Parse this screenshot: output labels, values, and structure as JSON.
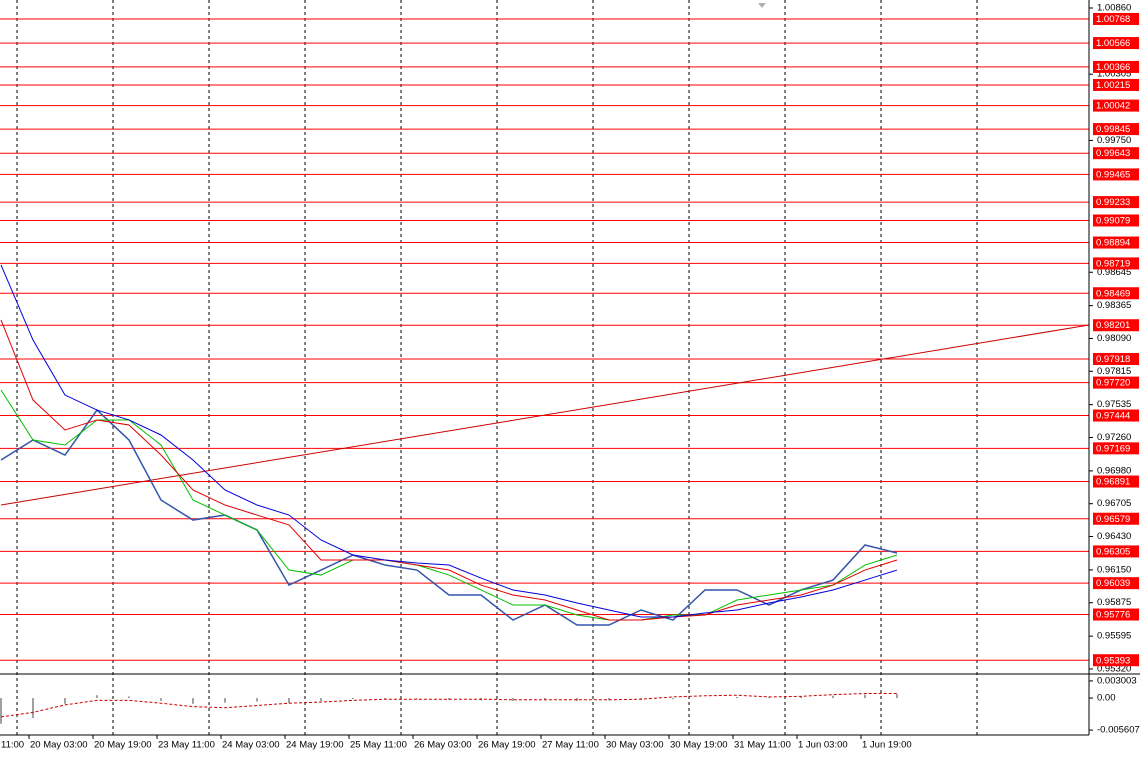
{
  "chart_data": {
    "type": "line",
    "x": [
      0,
      8,
      16,
      24,
      32,
      40,
      48,
      56,
      64,
      72,
      80,
      88,
      96,
      104,
      112,
      120,
      128,
      136,
      144,
      152,
      160,
      168,
      176,
      184,
      192,
      200,
      208,
      216,
      224
    ],
    "xlim": [
      -0.25,
      271.75
    ],
    "xticks": [
      {
        "value": -9,
        "label": "11:00"
      },
      {
        "value": 7,
        "label": "20 May 03:00"
      },
      {
        "value": 23,
        "label": "20 May 19:00"
      },
      {
        "value": 39,
        "label": "23 May 11:00"
      },
      {
        "value": 55,
        "label": "24 May 03:00"
      },
      {
        "value": 71,
        "label": "24 May 19:00"
      },
      {
        "value": 87,
        "label": "25 May 11:00"
      },
      {
        "value": 103,
        "label": "26 May 03:00"
      },
      {
        "value": 119,
        "label": "26 May 19:00"
      },
      {
        "value": 135,
        "label": "27 May 11:00"
      },
      {
        "value": 151,
        "label": "30 May 03:00"
      },
      {
        "value": 167,
        "label": "30 May 19:00"
      },
      {
        "value": 183,
        "label": "31 May 11:00"
      },
      {
        "value": 199,
        "label": "1 Jun 03:00"
      },
      {
        "value": 215,
        "label": "1 Jun 19:00"
      }
    ],
    "xgrid": [
      4,
      28,
      52,
      76,
      100,
      124,
      148,
      172,
      196,
      220,
      244
    ],
    "ylim": [
      0.95286,
      1.00927
    ],
    "yticks": [
      {
        "value": 1.0086,
        "label": "1.00860"
      },
      1.00305,
      {
        "value": 0.9975,
        "label": "0.99750"
      },
      0.98645,
      0.98365,
      {
        "value": 0.9809,
        "label": "0.98090"
      },
      0.97815,
      0.97535,
      {
        "value": 0.9726,
        "label": "0.97260"
      },
      {
        "value": 0.9698,
        "label": "0.96980"
      },
      0.96705,
      {
        "value": 0.9643,
        "label": "0.96430"
      },
      {
        "value": 0.9615,
        "label": "0.96150"
      },
      0.95875,
      0.95595,
      {
        "value": 0.9532,
        "label": "0.95320"
      }
    ],
    "levels": [
      1.00768,
      1.00566,
      1.00366,
      1.00215,
      1.00042,
      0.99845,
      0.99643,
      0.99465,
      0.99233,
      0.99079,
      0.98894,
      0.98719,
      0.98469,
      0.98201,
      0.97918,
      {
        "value": 0.9772,
        "label": "0.97720"
      },
      0.97444,
      0.97169,
      0.96891,
      0.96579,
      0.96305,
      0.96039,
      0.95776,
      0.95393
    ],
    "level_color": "#ff0000",
    "series": [
      {
        "color": "#3355aa",
        "values": [
          0.97071,
          0.97239,
          0.97113,
          0.9749,
          0.97239,
          0.96736,
          0.96568,
          0.9661,
          0.96485,
          0.96023,
          0.96149,
          0.96275,
          0.96191,
          0.96149,
          0.9594,
          0.9594,
          0.9573,
          0.95856,
          0.95688,
          0.95688,
          0.95814,
          0.9573,
          0.95982,
          0.95982,
          0.95856,
          0.95982,
          0.96065,
          0.96359,
          0.96292
        ]
      },
      {
        "color": "#00c000",
        "values": [
          0.97658,
          0.97239,
          0.97197,
          0.97407,
          0.97407,
          0.97197,
          0.96736,
          0.9661,
          0.96485,
          0.96149,
          0.96107,
          0.96233,
          0.96233,
          0.96191,
          0.96107,
          0.95982,
          0.95856,
          0.95856,
          0.95772,
          0.9573,
          0.9573,
          0.95772,
          0.95772,
          0.95898,
          0.9594,
          0.95982,
          0.96023,
          0.96191,
          0.96275
        ]
      },
      {
        "color": "#e00000",
        "values": [
          0.98245,
          0.97574,
          0.97323,
          0.97407,
          0.97365,
          0.97113,
          0.9682,
          0.96694,
          0.9661,
          0.96527,
          0.96233,
          0.96233,
          0.96233,
          0.96191,
          0.96149,
          0.96023,
          0.9594,
          0.95898,
          0.95814,
          0.9573,
          0.9573,
          0.95755,
          0.95772,
          0.95856,
          0.95898,
          0.9594,
          0.96023,
          0.96149,
          0.96233
        ]
      },
      {
        "color": "#0000dd",
        "values": [
          0.98706,
          0.98077,
          0.97616,
          0.9749,
          0.97407,
          0.97281,
          0.97071,
          0.9682,
          0.96694,
          0.9661,
          0.96401,
          0.96275,
          0.96233,
          0.96208,
          0.96191,
          0.96082,
          0.95982,
          0.9594,
          0.95873,
          0.95814,
          0.95755,
          0.95755,
          0.95789,
          0.95814,
          0.95873,
          0.95923,
          0.95982,
          0.96065,
          0.96149
        ]
      }
    ],
    "trendline": {
      "x": [
        0,
        272
      ],
      "values": [
        0.96694,
        0.98203
      ],
      "color": "#cc0000"
    },
    "oscillator": {
      "ylim": [
        -0.00647,
        0.00404
      ],
      "yticks": [
        0.003003,
        {
          "value": 0,
          "label": "0.00"
        },
        -0.005607
      ],
      "histogram": [
        -0.0045,
        -0.0035,
        -0.001,
        0.0005,
        0.0003,
        -0.0005,
        -0.001,
        -0.0008,
        -0.0006,
        -0.0009,
        -0.0005,
        -0.0002,
        -0.0002,
        -0.0001,
        -0.0003,
        -0.0004,
        -0.0005,
        -0.0004,
        -0.0005,
        -0.0004,
        -0.0003,
        -0.0002,
        0,
        0.0002,
        0.0002,
        0.0003,
        0.0004,
        0.0006,
        0.0007
      ],
      "histogram_color": "#a0a0a0",
      "signal": [
        -0.0033,
        -0.0025,
        -0.0012,
        -0.0004,
        -0.0004,
        -0.0009,
        -0.0015,
        -0.0017,
        -0.0013,
        -0.0009,
        -0.0007,
        -0.0004,
        -0.0002,
        -0.0002,
        -0.0002,
        -0.0002,
        -0.0003,
        -0.0003,
        -0.0003,
        -0.0003,
        -0.0002,
        0.0002,
        0.0004,
        0.0005,
        0.0002,
        0.0003,
        0.0006,
        0.0008,
        0.0008
      ],
      "signal_color": "#cc0000"
    }
  }
}
